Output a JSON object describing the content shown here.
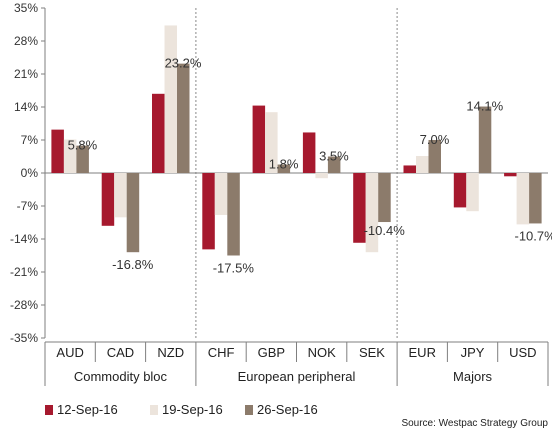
{
  "chart_data": {
    "type": "bar",
    "title": "",
    "xlabel": "",
    "ylabel": "",
    "ylim": [
      -35,
      35
    ],
    "yticks": [
      35,
      28,
      21,
      14,
      7,
      0,
      -7,
      -14,
      -21,
      -28,
      -35
    ],
    "ytick_labels": [
      "35%",
      "28%",
      "21%",
      "14%",
      "7%",
      "0%",
      "-7%",
      "-14%",
      "-21%",
      "-28%",
      "-35%"
    ],
    "categories": [
      "AUD",
      "CAD",
      "NZD",
      "CHF",
      "GBP",
      "NOK",
      "SEK",
      "EUR",
      "JPY",
      "USD"
    ],
    "groups": [
      {
        "name": "Commodity bloc",
        "categories": [
          "AUD",
          "CAD",
          "NZD"
        ]
      },
      {
        "name": "European peripheral",
        "categories": [
          "CHF",
          "GBP",
          "NOK",
          "SEK"
        ]
      },
      {
        "name": "Majors",
        "categories": [
          "EUR",
          "JPY",
          "USD"
        ]
      }
    ],
    "series": [
      {
        "name": "12-Sep-16",
        "color": "#a6192e",
        "values": [
          9.2,
          -11.2,
          16.8,
          -16.2,
          14.3,
          8.6,
          -14.8,
          1.6,
          -7.3,
          -0.7
        ]
      },
      {
        "name": "19-Sep-16",
        "color": "#ece4dc",
        "values": [
          7.1,
          -9.4,
          31.3,
          -8.9,
          12.9,
          -1.1,
          -16.8,
          3.6,
          -8.1,
          -10.9
        ]
      },
      {
        "name": "26-Sep-16",
        "color": "#8c7b6b",
        "values": [
          5.8,
          -16.8,
          23.2,
          -17.5,
          1.8,
          3.5,
          -10.4,
          7.0,
          14.1,
          -10.7
        ]
      }
    ],
    "data_labels": [
      {
        "category": "AUD",
        "text": "5.8%"
      },
      {
        "category": "CAD",
        "text": "-16.8%"
      },
      {
        "category": "NZD",
        "text": "23.2%"
      },
      {
        "category": "CHF",
        "text": "-17.5%"
      },
      {
        "category": "GBP",
        "text": "1.8%"
      },
      {
        "category": "NOK",
        "text": "3.5%"
      },
      {
        "category": "SEK",
        "text": "-10.4%"
      },
      {
        "category": "EUR",
        "text": "7.0%"
      },
      {
        "category": "JPY",
        "text": "14.1%"
      },
      {
        "category": "USD",
        "text": "-10.7%"
      }
    ],
    "grid": false,
    "legend_position": "bottom-left",
    "source": "Source: Westpac Strategy Group"
  }
}
